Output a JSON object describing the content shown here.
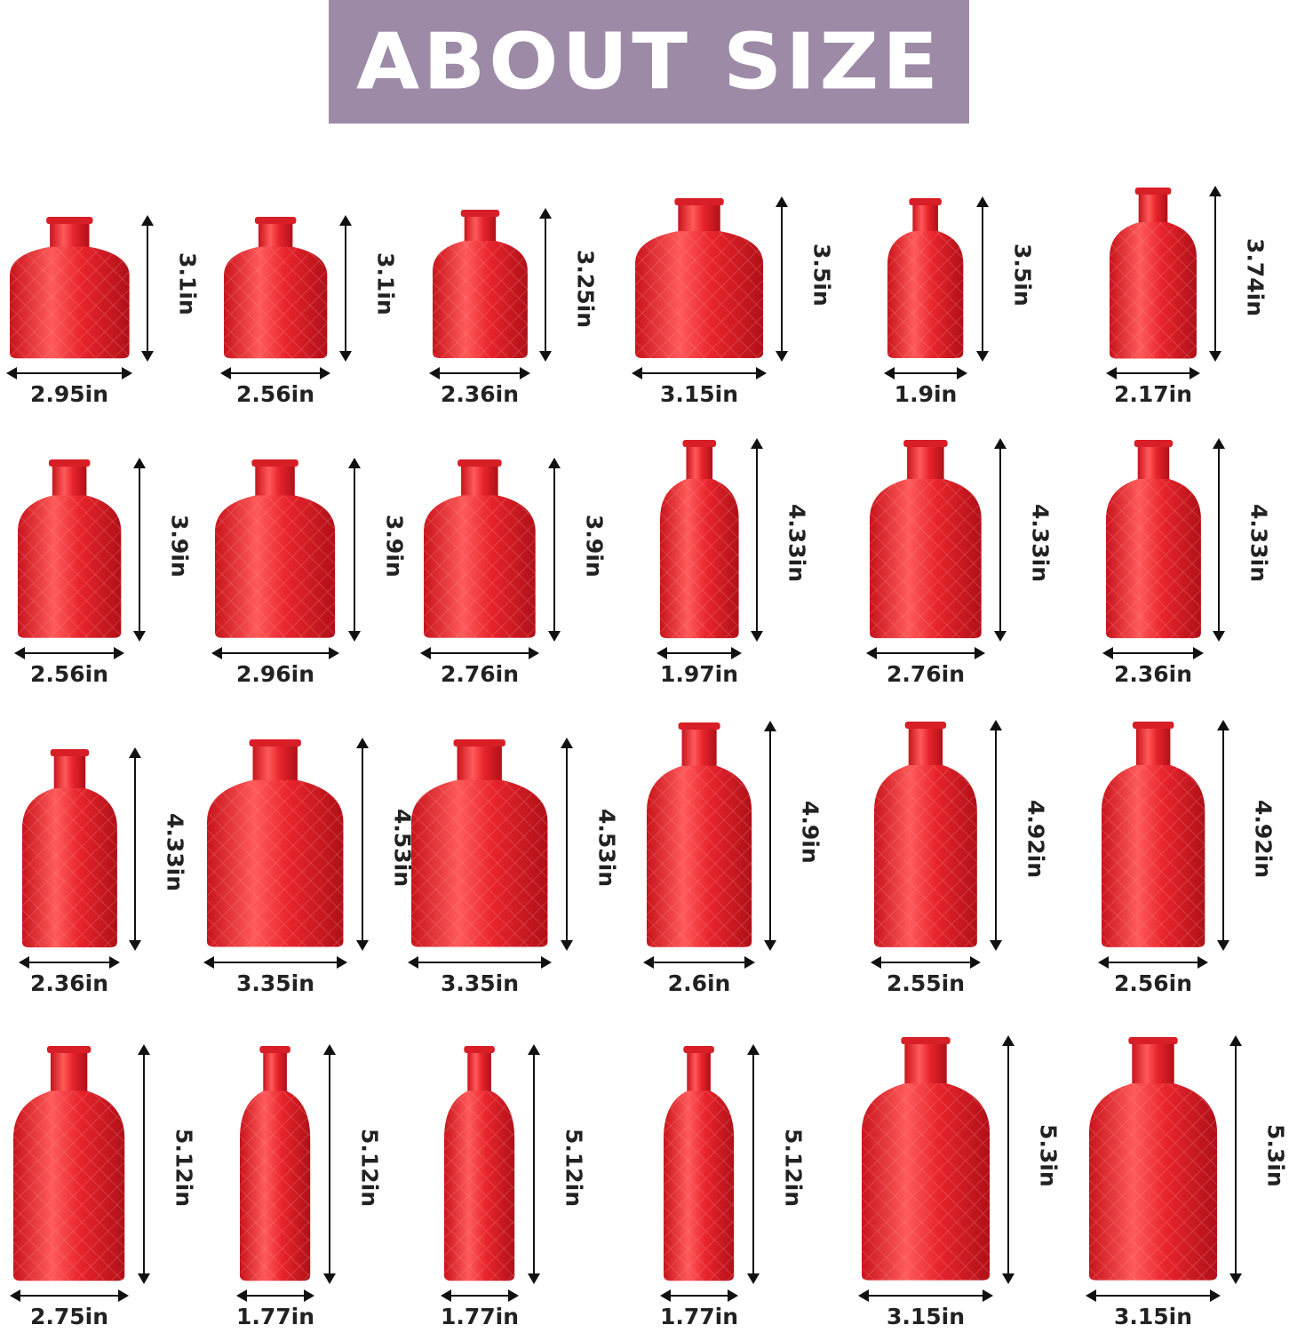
{
  "header": {
    "title": "ABOUT SIZE",
    "background_color": "#9d8aa7"
  },
  "vase_color": "#e8242c",
  "rows": [
    [
      {
        "width": "2.95in",
        "height": "3.1in"
      },
      {
        "width": "2.56in",
        "height": "3.1in"
      },
      {
        "width": "2.36in",
        "height": "3.25in"
      },
      {
        "width": "3.15in",
        "height": "3.5in"
      },
      {
        "width": "1.9in",
        "height": "3.5in"
      },
      {
        "width": "2.17in",
        "height": "3.74in"
      }
    ],
    [
      {
        "width": "2.56in",
        "height": "3.9in"
      },
      {
        "width": "2.96in",
        "height": "3.9in"
      },
      {
        "width": "2.76in",
        "height": "3.9in"
      },
      {
        "width": "1.97in",
        "height": "4.33in"
      },
      {
        "width": "2.76in",
        "height": "4.33in"
      },
      {
        "width": "2.36in",
        "height": "4.33in"
      }
    ],
    [
      {
        "width": "2.36in",
        "height": "4.33in"
      },
      {
        "width": "3.35in",
        "height": "4.53in"
      },
      {
        "width": "3.35in",
        "height": "4.53in"
      },
      {
        "width": "2.6in",
        "height": "4.9in"
      },
      {
        "width": "2.55in",
        "height": "4.92in"
      },
      {
        "width": "2.56in",
        "height": "4.92in"
      }
    ],
    [
      {
        "width": "2.75in",
        "height": "5.12in"
      },
      {
        "width": "1.77in",
        "height": "5.12in"
      },
      {
        "width": "1.77in",
        "height": "5.12in"
      },
      {
        "width": "1.77in",
        "height": "5.12in"
      },
      {
        "width": "3.15in",
        "height": "5.3in"
      },
      {
        "width": "3.15in",
        "height": "5.3in"
      }
    ]
  ]
}
